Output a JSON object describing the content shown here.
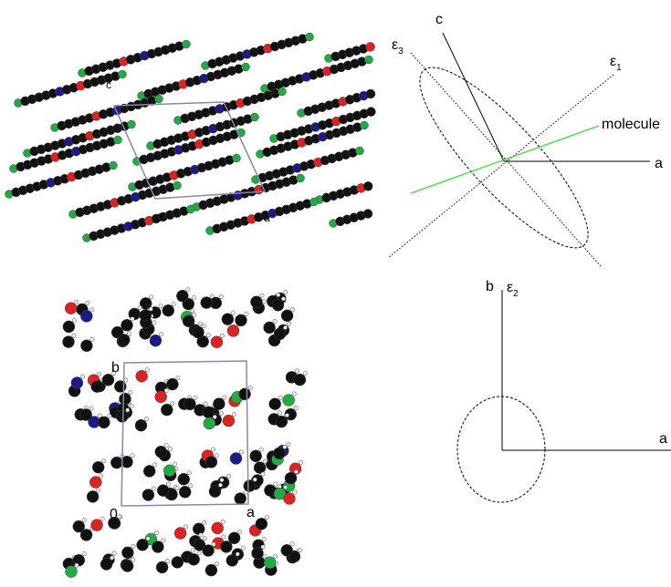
{
  "crystal_views": {
    "top": {
      "cell_labels": {
        "c": "c",
        "origin": "0",
        "a": "a"
      }
    },
    "bottom": {
      "cell_labels": {
        "b": "b",
        "origin": "0",
        "a": "a"
      }
    }
  },
  "axes_diagrams": {
    "top": {
      "c": "c",
      "a": "a",
      "molecule": "molecule",
      "eps3": {
        "symbol": "ε",
        "subscript": "3"
      },
      "eps1": {
        "symbol": "ε",
        "subscript": "1"
      }
    },
    "bottom": {
      "b": "b",
      "a": "a",
      "eps2": {
        "symbol": "ε",
        "subscript": "2"
      }
    }
  }
}
